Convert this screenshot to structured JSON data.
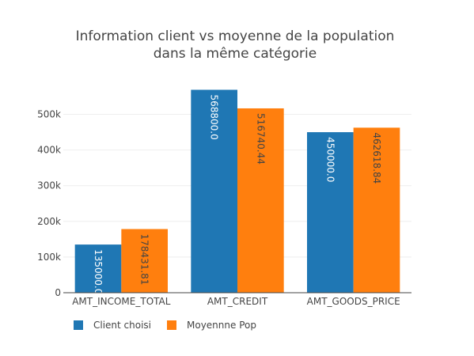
{
  "chart_data": {
    "type": "bar",
    "title_lines": [
      "Information client vs moyenne de la population",
      "dans la même catégorie"
    ],
    "categories": [
      "AMT_INCOME_TOTAL",
      "AMT_CREDIT",
      "AMT_GOODS_PRICE"
    ],
    "series": [
      {
        "name": "Client choisi",
        "color": "#1f77b4",
        "label_color": "#ffffff",
        "values": [
          135000.0,
          568800.0,
          450000.0
        ],
        "labels": [
          "135000.0",
          "568800.0",
          "450000.0"
        ]
      },
      {
        "name": "Moyennne Pop",
        "color": "#ff7f0e",
        "label_color": "#444444",
        "values": [
          178431.81,
          516740.44,
          462618.84
        ],
        "labels": [
          "178431.81",
          "516740.44",
          "462618.84"
        ]
      }
    ],
    "y_ticks": [
      0,
      100000,
      200000,
      300000,
      400000,
      500000
    ],
    "y_tick_labels": [
      "0",
      "100k",
      "200k",
      "300k",
      "400k",
      "500k"
    ],
    "ylim": [
      0,
      598737
    ],
    "grid": true,
    "legend_position": "bottom-left",
    "xlabel": "",
    "ylabel": ""
  }
}
